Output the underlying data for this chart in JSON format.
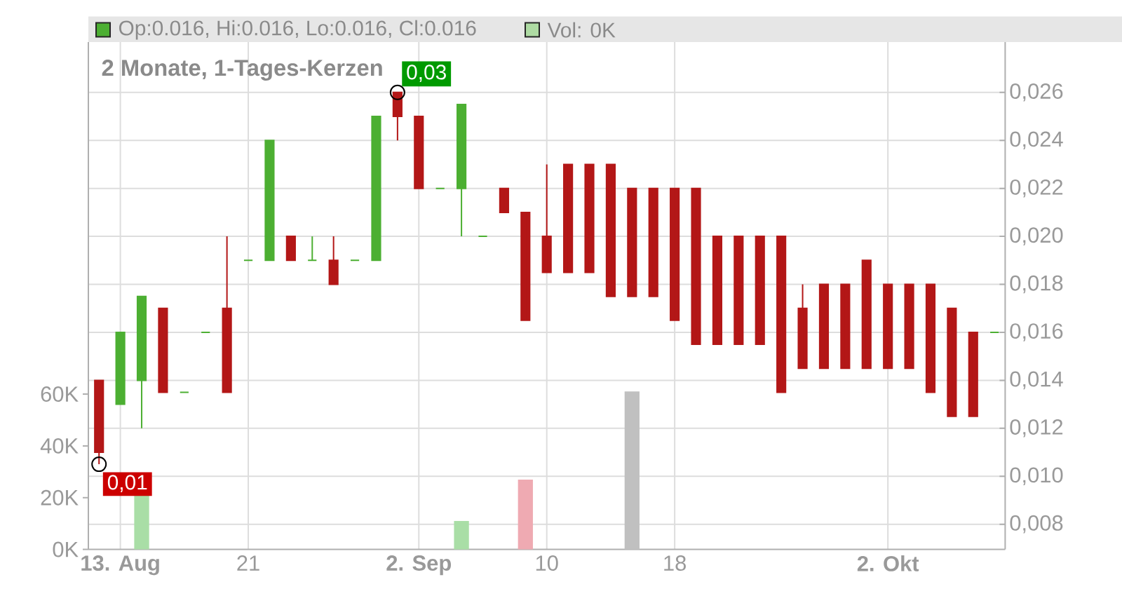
{
  "chart_data": {
    "type": "candlestick",
    "title": "2 Monate, 1-Tages-Kerzen",
    "categories": [
      null,
      "13. Aug",
      null,
      null,
      null,
      null,
      null,
      "21",
      null,
      null,
      null,
      null,
      null,
      null,
      null,
      "2. Sep",
      null,
      null,
      null,
      null,
      null,
      "10",
      null,
      null,
      null,
      null,
      null,
      "18",
      null,
      null,
      null,
      null,
      null,
      null,
      null,
      null,
      null,
      "2. Okt",
      null,
      null,
      null,
      null,
      null
    ],
    "ohlc": [
      [
        0.014,
        0.014,
        0.0105,
        0.011
      ],
      [
        0.013,
        0.016,
        0.013,
        0.016
      ],
      [
        0.014,
        0.0175,
        0.012,
        0.0175
      ],
      [
        0.017,
        0.017,
        0.0135,
        0.0135
      ],
      [
        0.0135,
        0.0135,
        0.0135,
        0.0135
      ],
      [
        0.016,
        0.016,
        0.016,
        0.016
      ],
      [
        0.017,
        0.02,
        0.0135,
        0.0135
      ],
      [
        0.019,
        0.019,
        0.019,
        0.019
      ],
      [
        0.019,
        0.024,
        0.019,
        0.024
      ],
      [
        0.02,
        0.02,
        0.019,
        0.019
      ],
      [
        0.019,
        0.02,
        0.019,
        0.019
      ],
      [
        0.019,
        0.02,
        0.018,
        0.018
      ],
      [
        0.019,
        0.019,
        0.019,
        0.019
      ],
      [
        0.019,
        0.025,
        0.019,
        0.025
      ],
      [
        0.026,
        0.026,
        0.024,
        0.025
      ],
      [
        0.025,
        0.025,
        0.022,
        0.022
      ],
      [
        0.022,
        0.022,
        0.022,
        0.022
      ],
      [
        0.022,
        0.0255,
        0.02,
        0.0255
      ],
      [
        0.02,
        0.02,
        0.02,
        0.02
      ],
      [
        0.022,
        0.022,
        0.021,
        0.021
      ],
      [
        0.021,
        0.021,
        0.0165,
        0.0165
      ],
      [
        0.02,
        0.023,
        0.0185,
        0.0185
      ],
      [
        0.023,
        0.023,
        0.0185,
        0.0185
      ],
      [
        0.023,
        0.023,
        0.0185,
        0.0185
      ],
      [
        0.023,
        0.023,
        0.0175,
        0.0175
      ],
      [
        0.022,
        0.022,
        0.0175,
        0.0175
      ],
      [
        0.022,
        0.022,
        0.0175,
        0.0175
      ],
      [
        0.022,
        0.022,
        0.0165,
        0.0165
      ],
      [
        0.022,
        0.022,
        0.0155,
        0.0155
      ],
      [
        0.02,
        0.02,
        0.0155,
        0.0155
      ],
      [
        0.02,
        0.02,
        0.0155,
        0.0155
      ],
      [
        0.02,
        0.02,
        0.0155,
        0.0155
      ],
      [
        0.02,
        0.02,
        0.0135,
        0.0135
      ],
      [
        0.017,
        0.018,
        0.0145,
        0.0145
      ],
      [
        0.018,
        0.018,
        0.0145,
        0.0145
      ],
      [
        0.018,
        0.018,
        0.0145,
        0.0145
      ],
      [
        0.019,
        0.019,
        0.0145,
        0.0145
      ],
      [
        0.018,
        0.018,
        0.0145,
        0.0145
      ],
      [
        0.018,
        0.018,
        0.0145,
        0.0145
      ],
      [
        0.018,
        0.018,
        0.0135,
        0.0135
      ],
      [
        0.017,
        0.017,
        0.0125,
        0.0125
      ],
      [
        0.016,
        0.016,
        0.0125,
        0.0125
      ],
      [
        0.016,
        0.016,
        0.016,
        0.016
      ]
    ],
    "colors": [
      "#b31717",
      "#4caf32",
      "#4caf32",
      "#b31717",
      "#4caf32",
      "#4caf32",
      "#b31717",
      "#4caf32",
      "#4caf32",
      "#b31717",
      "#4caf32",
      "#b31717",
      "#4caf32",
      "#4caf32",
      "#b31717",
      "#b31717",
      "#4caf32",
      "#4caf32",
      "#4caf32",
      "#b31717",
      "#b31717",
      "#b31717",
      "#b31717",
      "#b31717",
      "#b31717",
      "#b31717",
      "#b31717",
      "#b31717",
      "#b31717",
      "#b31717",
      "#b31717",
      "#b31717",
      "#b31717",
      "#b31717",
      "#b31717",
      "#b31717",
      "#b31717",
      "#b31717",
      "#b31717",
      "#b31717",
      "#b31717",
      "#b31717",
      "#4caf32"
    ],
    "series": [
      {
        "type": "bar",
        "axis": "y2",
        "values": [
          null,
          null,
          21000,
          null,
          null,
          null,
          null,
          null,
          null,
          null,
          null,
          null,
          null,
          null,
          null,
          null,
          null,
          11000,
          null,
          null,
          27000,
          null,
          null,
          null,
          null,
          61000,
          null,
          null,
          null,
          null,
          null,
          null,
          null,
          null,
          null,
          null,
          null,
          null,
          null,
          null,
          null,
          null,
          null
        ],
        "colors": [
          null,
          null,
          "#a9dea6",
          null,
          null,
          null,
          null,
          null,
          null,
          null,
          null,
          null,
          null,
          null,
          null,
          null,
          null,
          "#a9dea6",
          null,
          null,
          "#efaab2",
          null,
          null,
          null,
          null,
          "#c0c0c0",
          null,
          null,
          null,
          null,
          null,
          null,
          null,
          null,
          null,
          null,
          null,
          null,
          null,
          null,
          null,
          null,
          null
        ]
      }
    ],
    "ylim": [
      0.00695,
      0.0281
    ],
    "yticks": [
      {
        "value": 0.008,
        "label": "0,008"
      },
      {
        "value": 0.01,
        "label": "0,010"
      },
      {
        "value": 0.012,
        "label": "0,012"
      },
      {
        "value": 0.014,
        "label": "0,014"
      },
      {
        "value": 0.016,
        "label": "0,016"
      },
      {
        "value": 0.018,
        "label": "0,018"
      },
      {
        "value": 0.02,
        "label": "0,020"
      },
      {
        "value": 0.022,
        "label": "0,022"
      },
      {
        "value": 0.024,
        "label": "0,024"
      },
      {
        "value": 0.026,
        "label": "0,026"
      }
    ],
    "y2lim": [
      0,
      196000
    ],
    "y2ticks": [
      {
        "value": 0,
        "label": "0K"
      },
      {
        "value": 20000,
        "label": "20K"
      },
      {
        "value": 40000,
        "label": "40K"
      },
      {
        "value": 60000,
        "label": "60K"
      }
    ],
    "grid": true,
    "annotations": [
      "0,03",
      "0,01",
      "Op:0.016, Hi:0.016, Lo:0.016, Cl:0.016",
      "Vol: 0K"
    ]
  }
}
